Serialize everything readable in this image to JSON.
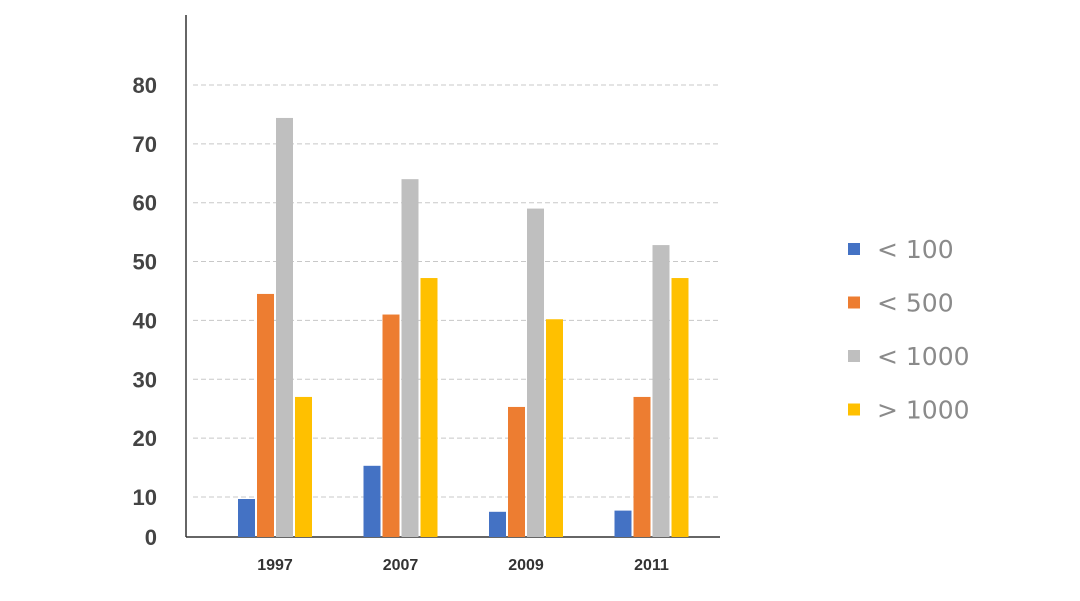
{
  "chart_data": {
    "type": "bar",
    "title": "",
    "xlabel": "",
    "ylabel": "",
    "ylim": [
      0,
      80
    ],
    "yticks": [
      0,
      10,
      20,
      30,
      40,
      50,
      60,
      70,
      80
    ],
    "grid": true,
    "legend_position": "right",
    "categories": [
      "1997",
      "2007",
      "2009",
      "2011"
    ],
    "series": [
      {
        "name": "< 100",
        "color": "#4472c4",
        "values": [
          9.5,
          15.3,
          6.3,
          6.6
        ]
      },
      {
        "name": "< 500",
        "color": "#ed7d31",
        "values": [
          44.5,
          41,
          25.3,
          27
        ]
      },
      {
        "name": "< 1000",
        "color": "#bfbfbf",
        "values": [
          74.4,
          64,
          59,
          52.8
        ]
      },
      {
        "name": "> 1000",
        "color": "#ffc000",
        "values": [
          27,
          47.2,
          40.2,
          47.2
        ]
      }
    ]
  }
}
